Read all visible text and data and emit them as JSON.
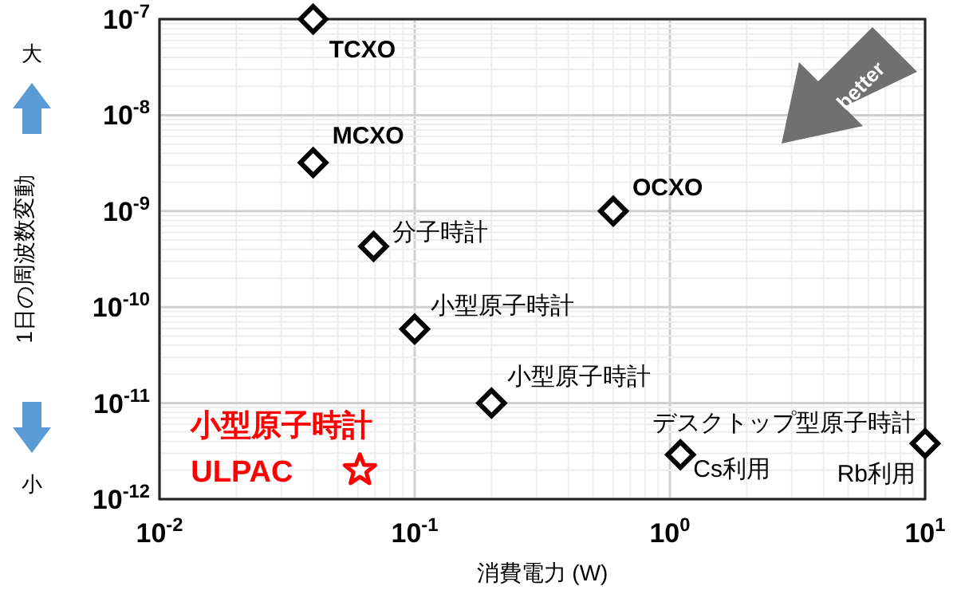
{
  "chart_data": {
    "type": "scatter",
    "xlabel": "消費電力 (W)",
    "ylabel": "1日の周波数変動",
    "log": "xy",
    "grid": true,
    "xlim": [
      0.01,
      10
    ],
    "ylim": [
      1e-12,
      1e-07
    ],
    "xticks": [
      {
        "value": 0.01,
        "label": "10$^{-2}$"
      },
      {
        "value": 0.1,
        "label": "10$^{-1}$"
      },
      {
        "value": 1,
        "label": "10$^{0}$"
      },
      {
        "value": 10,
        "label": "10$^{1}$"
      }
    ],
    "yticks": [
      {
        "value": 1e-12,
        "label": "10$^{-12}$"
      },
      {
        "value": 1e-11,
        "label": "10$^{-11}$"
      },
      {
        "value": 1e-10,
        "label": "10$^{-10}$"
      },
      {
        "value": 1e-09,
        "label": "10$^{-9}$"
      },
      {
        "value": 1e-08,
        "label": "10$^{-8}$"
      },
      {
        "value": 1e-07,
        "label": "10$^{-7}$"
      }
    ],
    "series": [
      {
        "color": "#000000",
        "marker": "diamond",
        "x": [
          0.04,
          0.04,
          0.069,
          0.1,
          0.2,
          0.6,
          1.1,
          10
        ],
        "values": [
          1e-07,
          3.2e-09,
          4.3e-10,
          5.9e-11,
          1e-11,
          1e-09,
          2.9e-12,
          3.8e-12
        ]
      },
      {
        "color": "#ff0000",
        "marker": "star",
        "x": [
          0.061
        ],
        "values": [
          2e-12
        ]
      }
    ],
    "annotations": [
      {
        "text": "TCXO",
        "x": 0.04,
        "y": 1e-07
      },
      {
        "text": "MCXO",
        "x": 0.04,
        "y": 3.2e-09
      },
      {
        "text": "分子時計",
        "x": 0.069,
        "y": 4.3e-10
      },
      {
        "text": "小型原子時計",
        "x": 0.1,
        "y": 5.9e-11
      },
      {
        "text": "小型原子時計",
        "x": 0.2,
        "y": 1e-11
      },
      {
        "text": "OCXO",
        "x": 0.6,
        "y": 1e-09
      },
      {
        "text": "デスクトップ型原子時計",
        "x": 10,
        "y": 3.8e-12
      },
      {
        "text": "Cs利用",
        "x": 1.1,
        "y": 2.9e-12
      },
      {
        "text": "Rb利用",
        "x": 10,
        "y": 3.8e-12
      },
      {
        "text": "小型原子時計",
        "x": 0.061,
        "y": 2e-12
      },
      {
        "text": "ULPAC",
        "x": 0.061,
        "y": 2e-12
      },
      "better",
      "大",
      "小"
    ]
  }
}
